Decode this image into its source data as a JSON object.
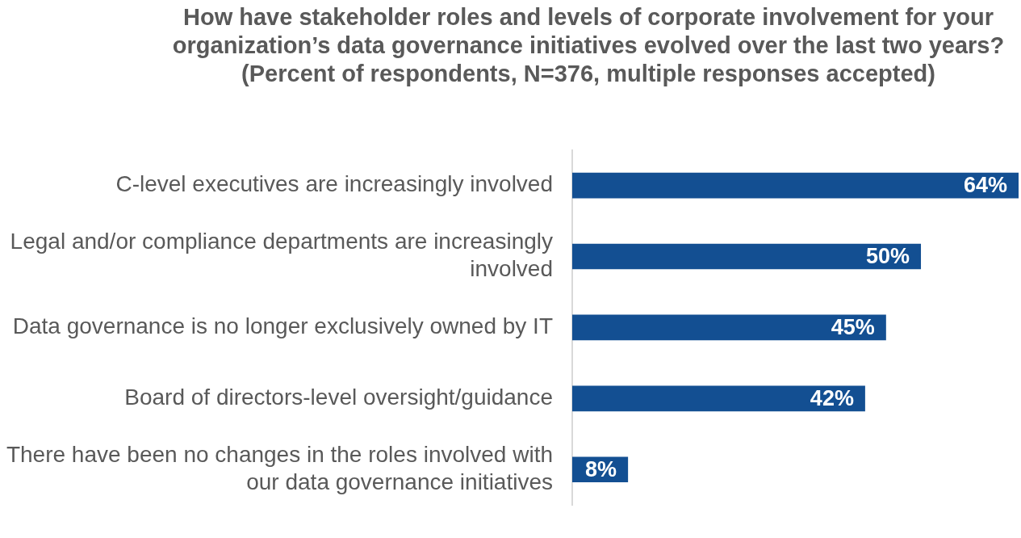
{
  "chart_data": {
    "type": "bar",
    "orientation": "horizontal",
    "title": "How have stakeholder roles and levels of corporate involvement for your organization’s data governance initiatives evolved over the last two years?",
    "subtitle": "(Percent of respondents, N=376, multiple responses accepted)",
    "categories": [
      "C-level executives are increasingly involved",
      "Legal and/or compliance departments are increasingly involved",
      "Data governance is no longer exclusively owned by IT",
      "Board of directors-level oversight/guidance",
      "There have been no changes in the roles involved with our data governance initiatives"
    ],
    "values": [
      64,
      50,
      45,
      42,
      8
    ],
    "value_labels": [
      "64%",
      "50%",
      "45%",
      "42%",
      "8%"
    ],
    "color": "#134f92",
    "xlim": [
      0,
      64
    ],
    "grid": false,
    "legend": false
  }
}
